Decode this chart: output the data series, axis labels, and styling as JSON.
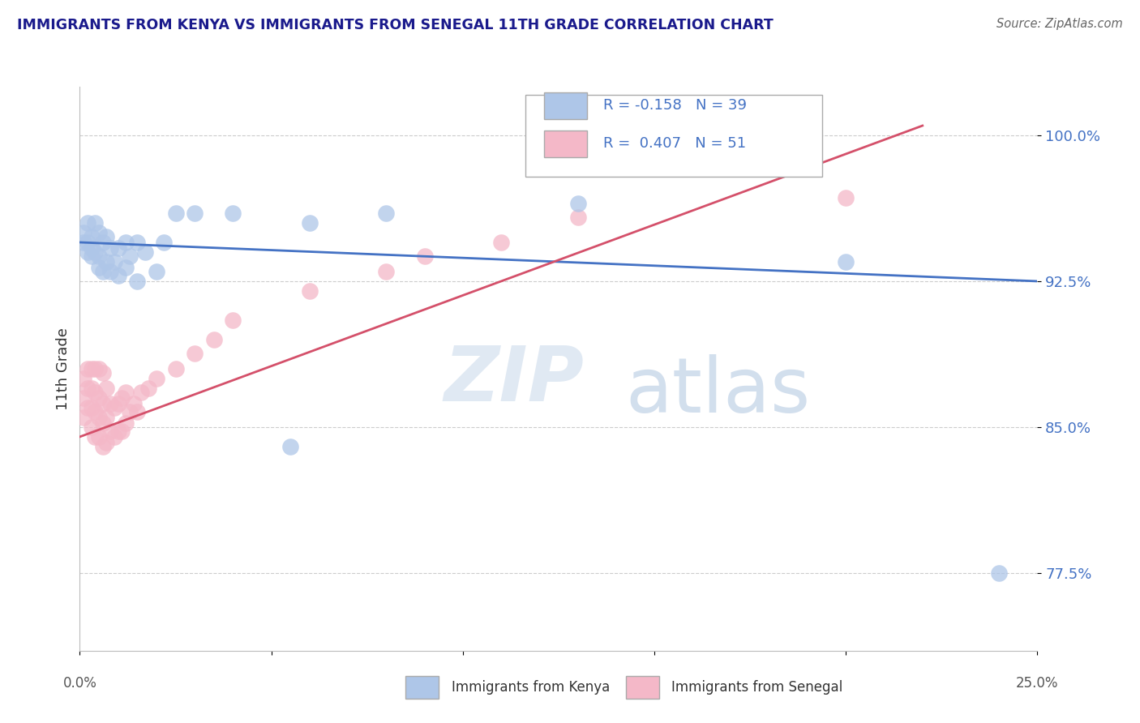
{
  "title": "IMMIGRANTS FROM KENYA VS IMMIGRANTS FROM SENEGAL 11TH GRADE CORRELATION CHART",
  "source": "Source: ZipAtlas.com",
  "ylabel": "11th Grade",
  "ytick_labels": [
    "77.5%",
    "85.0%",
    "92.5%",
    "100.0%"
  ],
  "ytick_values": [
    0.775,
    0.85,
    0.925,
    1.0
  ],
  "xlim": [
    0.0,
    0.25
  ],
  "ylim": [
    0.735,
    1.025
  ],
  "legend_label_kenya": "Immigrants from Kenya",
  "legend_label_senegal": "Immigrants from Senegal",
  "color_kenya": "#aec6e8",
  "color_senegal": "#f4b8c8",
  "line_color_kenya": "#4472c4",
  "line_color_senegal": "#d4506a",
  "watermark_zip": "ZIP",
  "watermark_atlas": "atlas",
  "title_color": "#1a1a8c",
  "kenya_R": -0.158,
  "kenya_N": 39,
  "senegal_R": 0.407,
  "senegal_N": 51,
  "kenya_line_x0": 0.0,
  "kenya_line_y0": 0.945,
  "kenya_line_x1": 0.25,
  "kenya_line_y1": 0.925,
  "senegal_line_x0": 0.0,
  "senegal_line_y0": 0.845,
  "senegal_line_x1": 0.22,
  "senegal_line_y1": 1.005,
  "kenya_points_x": [
    0.001,
    0.001,
    0.002,
    0.002,
    0.002,
    0.003,
    0.003,
    0.003,
    0.004,
    0.004,
    0.005,
    0.005,
    0.005,
    0.006,
    0.006,
    0.007,
    0.007,
    0.008,
    0.008,
    0.009,
    0.01,
    0.01,
    0.012,
    0.012,
    0.013,
    0.015,
    0.015,
    0.017,
    0.02,
    0.022,
    0.025,
    0.03,
    0.04,
    0.055,
    0.06,
    0.08,
    0.13,
    0.2,
    0.24
  ],
  "kenya_points_y": [
    0.945,
    0.95,
    0.94,
    0.945,
    0.955,
    0.938,
    0.942,
    0.948,
    0.94,
    0.955,
    0.932,
    0.938,
    0.95,
    0.93,
    0.945,
    0.935,
    0.948,
    0.93,
    0.942,
    0.935,
    0.928,
    0.942,
    0.932,
    0.945,
    0.938,
    0.925,
    0.945,
    0.94,
    0.93,
    0.945,
    0.96,
    0.96,
    0.96,
    0.84,
    0.955,
    0.96,
    0.965,
    0.935,
    0.775
  ],
  "senegal_points_x": [
    0.001,
    0.001,
    0.001,
    0.002,
    0.002,
    0.002,
    0.003,
    0.003,
    0.003,
    0.003,
    0.004,
    0.004,
    0.004,
    0.004,
    0.005,
    0.005,
    0.005,
    0.005,
    0.006,
    0.006,
    0.006,
    0.006,
    0.007,
    0.007,
    0.007,
    0.008,
    0.008,
    0.009,
    0.009,
    0.01,
    0.01,
    0.011,
    0.011,
    0.012,
    0.012,
    0.013,
    0.014,
    0.015,
    0.016,
    0.018,
    0.02,
    0.025,
    0.03,
    0.035,
    0.04,
    0.06,
    0.08,
    0.09,
    0.11,
    0.13,
    0.2
  ],
  "senegal_points_y": [
    0.855,
    0.865,
    0.875,
    0.86,
    0.87,
    0.88,
    0.85,
    0.86,
    0.87,
    0.88,
    0.845,
    0.858,
    0.868,
    0.88,
    0.845,
    0.855,
    0.865,
    0.88,
    0.84,
    0.852,
    0.862,
    0.878,
    0.842,
    0.855,
    0.87,
    0.848,
    0.862,
    0.845,
    0.86,
    0.848,
    0.862,
    0.848,
    0.865,
    0.852,
    0.868,
    0.858,
    0.862,
    0.858,
    0.868,
    0.87,
    0.875,
    0.88,
    0.888,
    0.895,
    0.905,
    0.92,
    0.93,
    0.938,
    0.945,
    0.958,
    0.968
  ]
}
